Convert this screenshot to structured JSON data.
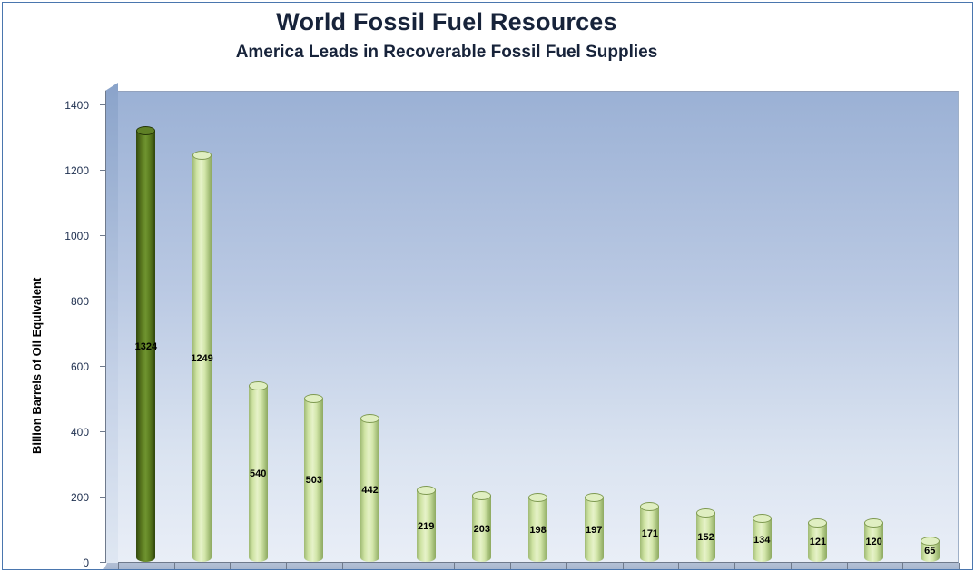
{
  "chart_data": {
    "type": "bar",
    "title": "World Fossil Fuel Resources",
    "subtitle": "America Leads in Recoverable Fossil Fuel Supplies",
    "ylabel": "Billion Barrels of Oil Equivalent",
    "xlabel": "",
    "ylim": [
      0,
      1400
    ],
    "yticks": [
      0,
      200,
      400,
      600,
      800,
      1000,
      1200,
      1400
    ],
    "grid": false,
    "legend": false,
    "values": [
      1324,
      1249,
      540,
      503,
      442,
      219,
      203,
      198,
      197,
      171,
      152,
      134,
      121,
      120,
      65
    ],
    "highlight_index": 0,
    "colors": {
      "bar_fill": "#d9e9b6",
      "bar_edge": "#86a159",
      "bar_highlight": "#5c7c1e",
      "plot_bg_top": "#9bb1d5",
      "plot_bg_bottom": "#e9eef7",
      "frame_border": "#4a76ae",
      "axis": "#6f7a8c",
      "tick_label": "#1f3050",
      "title_color": "#17233a"
    }
  }
}
